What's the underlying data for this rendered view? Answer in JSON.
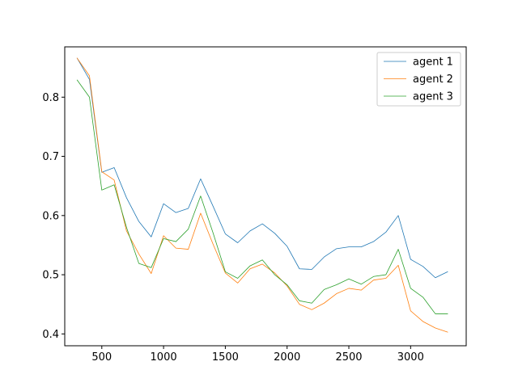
{
  "chart_data": {
    "type": "line",
    "title": "",
    "xlabel": "",
    "ylabel": "",
    "xlim": [
      200,
      3450
    ],
    "ylim": [
      0.38,
      0.885
    ],
    "xticks": [
      500,
      1000,
      1500,
      2000,
      2500,
      3000
    ],
    "yticks": [
      0.4,
      0.5,
      0.6,
      0.7,
      0.8
    ],
    "xtick_labels": [
      "500",
      "1000",
      "1500",
      "2000",
      "2500",
      "3000"
    ],
    "ytick_labels": [
      "0.4",
      "0.5",
      "0.6",
      "0.7",
      "0.8"
    ],
    "grid": false,
    "legend_position": "top-right",
    "x": [
      300,
      400,
      500,
      600,
      700,
      800,
      900,
      1000,
      1100,
      1200,
      1300,
      1400,
      1500,
      1600,
      1700,
      1800,
      1900,
      2000,
      2100,
      2200,
      2300,
      2400,
      2500,
      2600,
      2700,
      2800,
      2900,
      3000,
      3100,
      3200,
      3300
    ],
    "series": [
      {
        "name": "agent 1",
        "color": "#1f77b4",
        "values": [
          0.866,
          0.83,
          0.673,
          0.681,
          0.63,
          0.59,
          0.564,
          0.62,
          0.605,
          0.612,
          0.662,
          0.616,
          0.569,
          0.554,
          0.574,
          0.586,
          0.57,
          0.548,
          0.51,
          0.509,
          0.53,
          0.544,
          0.547,
          0.547,
          0.556,
          0.572,
          0.6,
          0.526,
          0.514,
          0.495,
          0.505
        ]
      },
      {
        "name": "agent 2",
        "color": "#ff7f0e",
        "values": [
          0.866,
          0.836,
          0.674,
          0.66,
          0.574,
          0.535,
          0.502,
          0.566,
          0.545,
          0.543,
          0.604,
          0.552,
          0.503,
          0.486,
          0.51,
          0.518,
          0.503,
          0.481,
          0.45,
          0.441,
          0.452,
          0.468,
          0.477,
          0.474,
          0.491,
          0.494,
          0.516,
          0.439,
          0.421,
          0.41,
          0.403
        ]
      },
      {
        "name": "agent 3",
        "color": "#2ca02c",
        "values": [
          0.829,
          0.8,
          0.643,
          0.652,
          0.58,
          0.519,
          0.512,
          0.561,
          0.556,
          0.577,
          0.633,
          0.571,
          0.505,
          0.494,
          0.515,
          0.525,
          0.5,
          0.483,
          0.456,
          0.452,
          0.475,
          0.483,
          0.493,
          0.484,
          0.497,
          0.5,
          0.543,
          0.477,
          0.462,
          0.434,
          0.434
        ]
      }
    ]
  }
}
